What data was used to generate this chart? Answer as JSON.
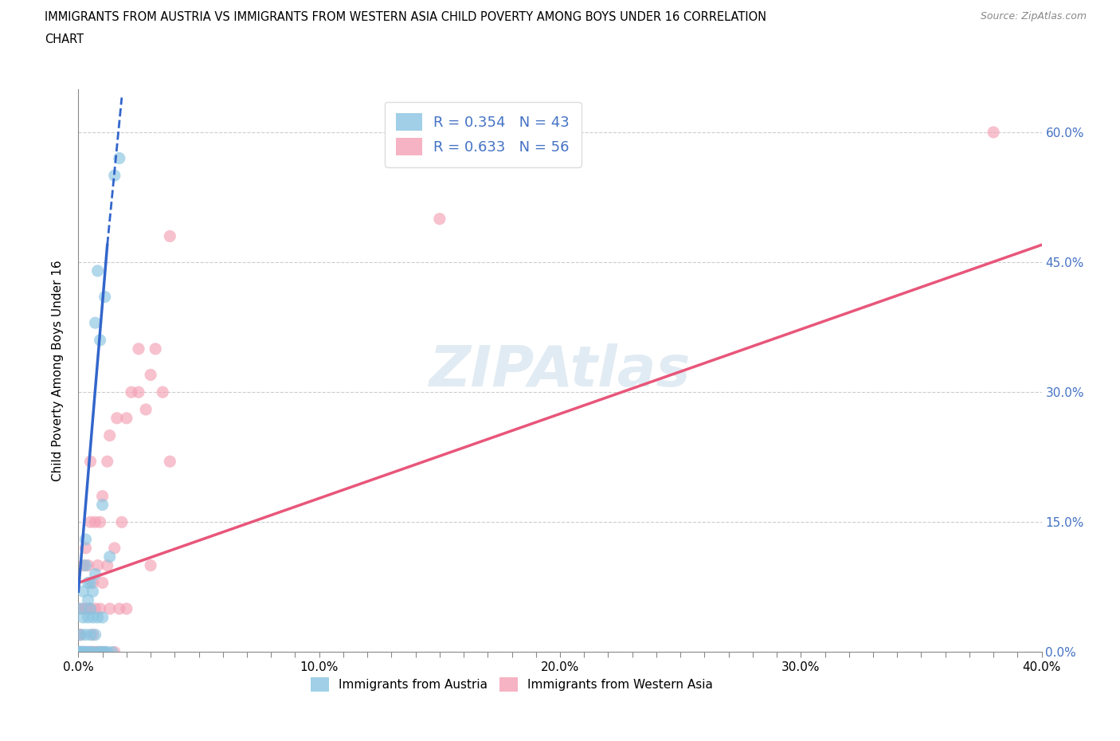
{
  "title_line1": "IMMIGRANTS FROM AUSTRIA VS IMMIGRANTS FROM WESTERN ASIA CHILD POVERTY AMONG BOYS UNDER 16 CORRELATION",
  "title_line2": "CHART",
  "source_text": "Source: ZipAtlas.com",
  "xlabel_label": "Immigrants from Austria",
  "ylabel_label": "Child Poverty Among Boys Under 16",
  "xlabel2_label": "Immigrants from Western Asia",
  "xmin": 0.0,
  "xmax": 0.4,
  "ymin": 0.0,
  "ymax": 0.65,
  "austria_R": 0.354,
  "austria_N": 43,
  "western_asia_R": 0.633,
  "western_asia_N": 56,
  "austria_color": "#89c4e1",
  "western_asia_color": "#f4a0b5",
  "austria_line_color": "#3366cc",
  "western_asia_line_color": "#e8567a",
  "watermark": "ZIPAtlas",
  "legend_R_N_color": "#4472c4",
  "grid_color": "#cccccc",
  "austria_scatter": [
    [
      0.0,
      0.0
    ],
    [
      0.0005,
      0.0
    ],
    [
      0.001,
      0.0
    ],
    [
      0.001,
      0.02
    ],
    [
      0.001,
      0.05
    ],
    [
      0.0015,
      0.0
    ],
    [
      0.002,
      0.0
    ],
    [
      0.002,
      0.04
    ],
    [
      0.002,
      0.07
    ],
    [
      0.0025,
      0.0
    ],
    [
      0.003,
      0.0
    ],
    [
      0.003,
      0.02
    ],
    [
      0.003,
      0.1
    ],
    [
      0.003,
      0.13
    ],
    [
      0.004,
      0.0
    ],
    [
      0.004,
      0.04
    ],
    [
      0.004,
      0.06
    ],
    [
      0.004,
      0.08
    ],
    [
      0.005,
      0.0
    ],
    [
      0.005,
      0.02
    ],
    [
      0.005,
      0.05
    ],
    [
      0.005,
      0.08
    ],
    [
      0.006,
      0.0
    ],
    [
      0.006,
      0.04
    ],
    [
      0.006,
      0.07
    ],
    [
      0.007,
      0.02
    ],
    [
      0.007,
      0.09
    ],
    [
      0.007,
      0.38
    ],
    [
      0.008,
      0.0
    ],
    [
      0.008,
      0.04
    ],
    [
      0.008,
      0.44
    ],
    [
      0.009,
      0.0
    ],
    [
      0.009,
      0.36
    ],
    [
      0.01,
      0.0
    ],
    [
      0.01,
      0.04
    ],
    [
      0.01,
      0.17
    ],
    [
      0.011,
      0.0
    ],
    [
      0.011,
      0.41
    ],
    [
      0.012,
      0.0
    ],
    [
      0.013,
      0.11
    ],
    [
      0.014,
      0.0
    ],
    [
      0.015,
      0.55
    ],
    [
      0.017,
      0.57
    ]
  ],
  "western_asia_scatter": [
    [
      0.0,
      0.0
    ],
    [
      0.0,
      0.02
    ],
    [
      0.0,
      0.05
    ],
    [
      0.001,
      0.0
    ],
    [
      0.001,
      0.02
    ],
    [
      0.002,
      0.0
    ],
    [
      0.002,
      0.05
    ],
    [
      0.002,
      0.1
    ],
    [
      0.003,
      0.0
    ],
    [
      0.003,
      0.05
    ],
    [
      0.003,
      0.12
    ],
    [
      0.004,
      0.0
    ],
    [
      0.004,
      0.05
    ],
    [
      0.004,
      0.1
    ],
    [
      0.005,
      0.0
    ],
    [
      0.005,
      0.05
    ],
    [
      0.005,
      0.15
    ],
    [
      0.005,
      0.22
    ],
    [
      0.006,
      0.0
    ],
    [
      0.006,
      0.02
    ],
    [
      0.006,
      0.08
    ],
    [
      0.007,
      0.0
    ],
    [
      0.007,
      0.05
    ],
    [
      0.007,
      0.15
    ],
    [
      0.008,
      0.0
    ],
    [
      0.008,
      0.1
    ],
    [
      0.009,
      0.0
    ],
    [
      0.009,
      0.05
    ],
    [
      0.009,
      0.15
    ],
    [
      0.01,
      0.0
    ],
    [
      0.01,
      0.08
    ],
    [
      0.01,
      0.18
    ],
    [
      0.011,
      0.0
    ],
    [
      0.012,
      0.1
    ],
    [
      0.012,
      0.22
    ],
    [
      0.013,
      0.05
    ],
    [
      0.013,
      0.25
    ],
    [
      0.015,
      0.0
    ],
    [
      0.015,
      0.12
    ],
    [
      0.016,
      0.27
    ],
    [
      0.017,
      0.05
    ],
    [
      0.018,
      0.15
    ],
    [
      0.02,
      0.27
    ],
    [
      0.02,
      0.05
    ],
    [
      0.022,
      0.3
    ],
    [
      0.025,
      0.3
    ],
    [
      0.025,
      0.35
    ],
    [
      0.028,
      0.28
    ],
    [
      0.03,
      0.1
    ],
    [
      0.03,
      0.32
    ],
    [
      0.032,
      0.35
    ],
    [
      0.035,
      0.3
    ],
    [
      0.038,
      0.22
    ],
    [
      0.038,
      0.48
    ],
    [
      0.15,
      0.5
    ],
    [
      0.38,
      0.6
    ]
  ],
  "austria_line": [
    [
      0.0,
      0.07
    ],
    [
      0.012,
      0.47
    ]
  ],
  "austria_line_dashed": [
    [
      0.012,
      0.47
    ],
    [
      0.018,
      0.64
    ]
  ],
  "western_asia_line": [
    [
      0.0,
      0.08
    ],
    [
      0.4,
      0.47
    ]
  ]
}
